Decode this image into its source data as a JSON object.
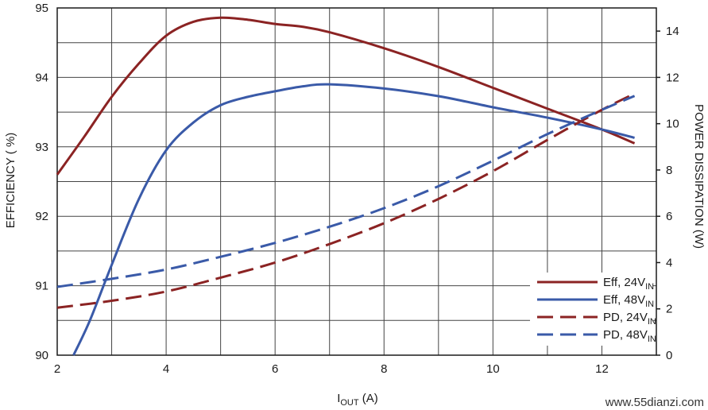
{
  "chart_data": {
    "type": "line",
    "xlabel": {
      "main": "I",
      "sub": "OUT",
      "rest": " (A)"
    },
    "ylabel": "EFFICIENCY ( %)",
    "y2label": "POWER DISSIPATION (W)",
    "xlim": [
      2,
      13
    ],
    "ylim": [
      90,
      95
    ],
    "y2lim": [
      0,
      15
    ],
    "x_ticks": [
      2,
      4,
      6,
      8,
      10,
      12
    ],
    "y_ticks": [
      90,
      91,
      92,
      93,
      94,
      95
    ],
    "y2_ticks": [
      0,
      2,
      4,
      6,
      8,
      10,
      12,
      14
    ],
    "grid": true,
    "legend_position": "bottom-right",
    "series": [
      {
        "name": "Eff, 24V",
        "name_sub": "IN",
        "axis": "left",
        "style": "solid",
        "color": "#8b2323",
        "x": [
          2,
          2.5,
          3,
          3.5,
          4,
          4.5,
          5,
          5.5,
          6,
          6.5,
          7,
          8,
          9,
          10,
          11,
          12,
          12.6
        ],
        "y": [
          92.6,
          93.15,
          93.72,
          94.2,
          94.6,
          94.8,
          94.86,
          94.83,
          94.77,
          94.73,
          94.65,
          94.42,
          94.15,
          93.85,
          93.55,
          93.25,
          93.05
        ]
      },
      {
        "name": "Eff, 48V",
        "name_sub": "IN",
        "axis": "left",
        "style": "solid",
        "color": "#3a5aa8",
        "x": [
          2.3,
          2.6,
          3,
          3.5,
          4,
          4.5,
          5,
          5.5,
          6,
          6.5,
          7,
          8,
          9,
          10,
          11,
          12,
          12.6
        ],
        "y": [
          90.0,
          90.5,
          91.3,
          92.25,
          92.95,
          93.35,
          93.6,
          93.72,
          93.8,
          93.87,
          93.9,
          93.84,
          93.73,
          93.57,
          93.42,
          93.25,
          93.13
        ]
      },
      {
        "name": "PD, 24V",
        "name_sub": "IN",
        "axis": "right",
        "style": "dashed",
        "color": "#8b2323",
        "x": [
          2,
          3,
          4,
          5,
          6,
          7,
          8,
          9,
          10,
          11,
          12,
          12.6
        ],
        "y": [
          2.05,
          2.35,
          2.75,
          3.35,
          4.0,
          4.8,
          5.7,
          6.75,
          7.95,
          9.3,
          10.6,
          11.3
        ]
      },
      {
        "name": "PD, 48V",
        "name_sub": "IN",
        "axis": "right",
        "style": "dashed",
        "color": "#3a5aa8",
        "x": [
          2,
          3,
          4,
          5,
          6,
          7,
          8,
          9,
          10,
          11,
          12,
          12.6
        ],
        "y": [
          2.95,
          3.3,
          3.7,
          4.25,
          4.85,
          5.55,
          6.35,
          7.3,
          8.4,
          9.55,
          10.6,
          11.2
        ]
      }
    ]
  },
  "watermark": "www.55dianzi.com"
}
